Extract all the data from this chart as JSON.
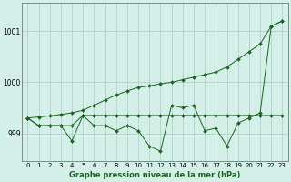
{
  "title": "Graphe pression niveau de la mer (hPa)",
  "bg_color": "#d4eee8",
  "grid_color": "#aaccc6",
  "line_color": "#1a6620",
  "xlim": [
    -0.5,
    23.5
  ],
  "ylim": [
    998.45,
    1001.55
  ],
  "yticks": [
    999,
    1000,
    1001
  ],
  "xticks": [
    0,
    1,
    2,
    3,
    4,
    5,
    6,
    7,
    8,
    9,
    10,
    11,
    12,
    13,
    14,
    15,
    16,
    17,
    18,
    19,
    20,
    21,
    22,
    23
  ],
  "y_linear": [
    999.3,
    999.32,
    999.34,
    999.37,
    999.4,
    999.45,
    999.55,
    999.65,
    999.75,
    999.83,
    999.9,
    999.93,
    999.97,
    1000.0,
    1000.05,
    1000.1,
    1000.15,
    1000.2,
    1000.3,
    1000.45,
    1000.6,
    1000.75,
    1001.1,
    1001.2
  ],
  "y_flat": [
    999.3,
    999.15,
    999.15,
    999.15,
    999.15,
    999.35,
    999.35,
    999.35,
    999.35,
    999.35,
    999.35,
    999.35,
    999.35,
    999.35,
    999.35,
    999.35,
    999.35,
    999.35,
    999.35,
    999.35,
    999.35,
    999.35,
    999.35,
    999.35
  ],
  "y_oscillating": [
    999.3,
    999.15,
    999.15,
    999.15,
    998.85,
    999.35,
    999.15,
    999.15,
    999.05,
    999.15,
    999.05,
    998.75,
    998.65,
    999.55,
    999.5,
    999.55,
    999.05,
    999.1,
    998.75,
    999.2,
    999.3,
    999.4,
    1001.1,
    1001.2
  ]
}
